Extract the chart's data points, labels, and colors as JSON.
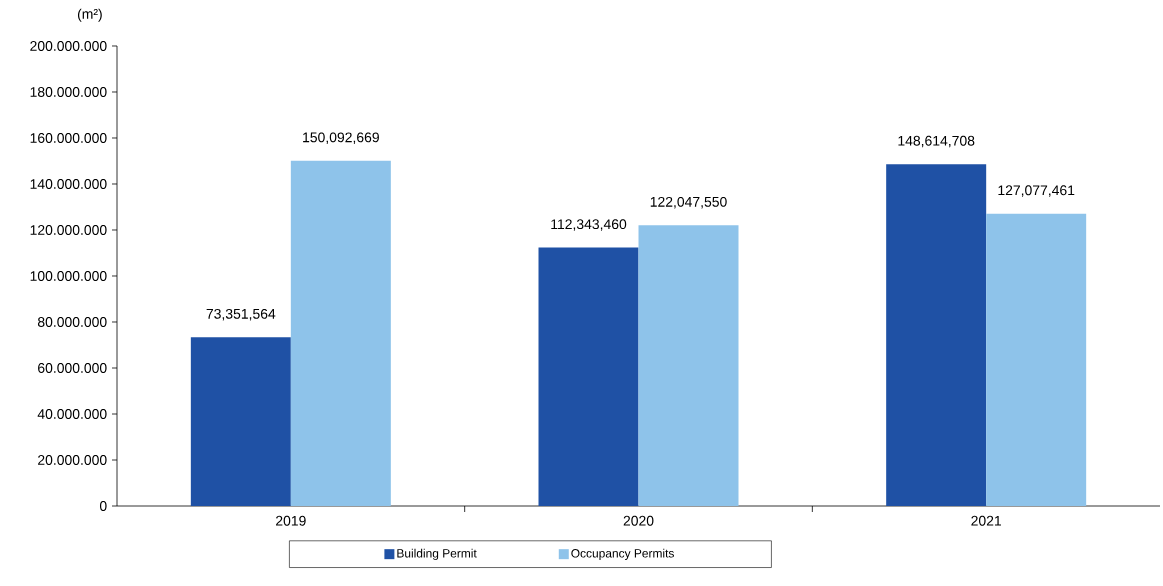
{
  "chart_data": {
    "type": "bar",
    "ylabel": "(m²)",
    "categories": [
      "2019",
      "2020",
      "2021"
    ],
    "series": [
      {
        "name": "Building Permit",
        "color": "#1f51a5",
        "values": [
          73351564,
          112343460,
          148614708
        ],
        "value_labels": [
          "73,351,564",
          "112,343,460",
          "148,614,708"
        ]
      },
      {
        "name": "Occupancy Permits",
        "color": "#8ec3ea",
        "values": [
          150092669,
          122047550,
          127077461
        ],
        "value_labels": [
          "150,092,669",
          "122,047,550",
          "127,077,461"
        ]
      }
    ],
    "ylim": [
      0,
      200000000
    ],
    "yticks": [
      0,
      {
        "value": 20000000,
        "label": "20.000.000"
      },
      {
        "value": 40000000,
        "label": "40.000.000"
      },
      {
        "value": 60000000,
        "label": "60.000.000"
      },
      {
        "value": 80000000,
        "label": "80.000.000"
      },
      {
        "value": 100000000,
        "label": "100.000.000"
      },
      {
        "value": 120000000,
        "label": "120.000.000"
      },
      {
        "value": 140000000,
        "label": "140.000.000"
      },
      {
        "value": 160000000,
        "label": "160.000.000"
      },
      {
        "value": 180000000,
        "label": "180.000.000"
      },
      {
        "value": 200000000,
        "label": "200.000.000"
      }
    ],
    "legend": "bottom",
    "grid": false
  }
}
